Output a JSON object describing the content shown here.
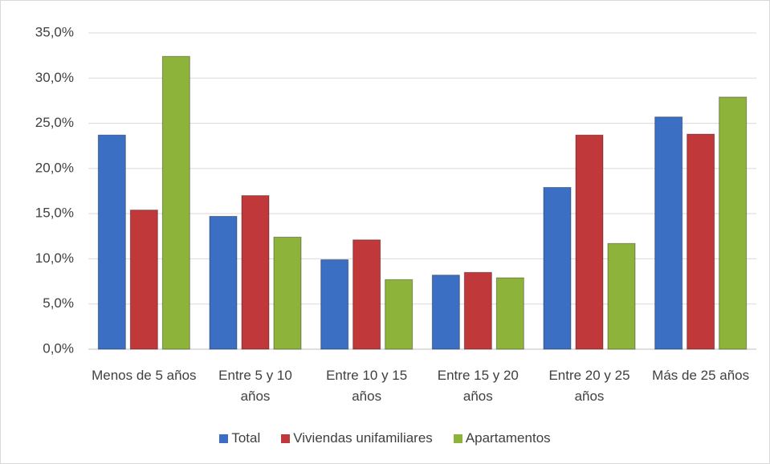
{
  "chart_data": {
    "type": "bar",
    "categories": [
      "Menos de 5 años",
      "Entre 5 y 10 años",
      "Entre 10 y 15 años",
      "Entre 15 y 20 años",
      "Entre 20 y 25 años",
      "Más de 25 años"
    ],
    "series": [
      {
        "name": "Total",
        "color": "#3a6fc4",
        "values": [
          23.7,
          14.7,
          9.9,
          8.2,
          17.9,
          25.7
        ]
      },
      {
        "name": "Viviendas unifamiliares",
        "color": "#c0383a",
        "values": [
          15.4,
          17.0,
          12.1,
          8.5,
          23.7,
          23.8
        ]
      },
      {
        "name": "Apartamentos",
        "color": "#8db33a",
        "values": [
          32.4,
          12.4,
          7.7,
          7.9,
          11.7,
          27.9
        ]
      }
    ],
    "ylim": [
      0,
      35
    ],
    "yticks": [
      {
        "value": 0,
        "label": "0,0%"
      },
      {
        "value": 5,
        "label": "5,0%"
      },
      {
        "value": 10,
        "label": "10,0%"
      },
      {
        "value": 15,
        "label": "15,0%"
      },
      {
        "value": 20,
        "label": "20,0%"
      },
      {
        "value": 25,
        "label": "25,0%"
      },
      {
        "value": 30,
        "label": "30,0%"
      },
      {
        "value": 35,
        "label": "35,0%"
      }
    ],
    "grid": true,
    "legend": "bottom"
  }
}
